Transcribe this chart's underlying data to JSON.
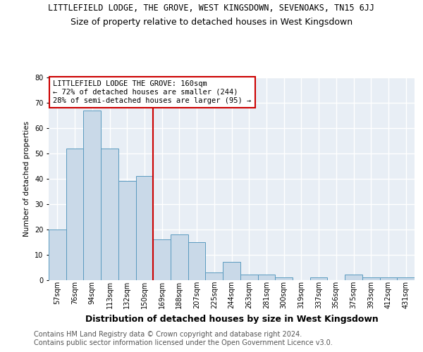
{
  "title": "LITTLEFIELD LODGE, THE GROVE, WEST KINGSDOWN, SEVENOAKS, TN15 6JJ",
  "subtitle": "Size of property relative to detached houses in West Kingsdown",
  "xlabel": "Distribution of detached houses by size in West Kingsdown",
  "ylabel": "Number of detached properties",
  "categories": [
    "57sqm",
    "76sqm",
    "94sqm",
    "113sqm",
    "132sqm",
    "150sqm",
    "169sqm",
    "188sqm",
    "207sqm",
    "225sqm",
    "244sqm",
    "263sqm",
    "281sqm",
    "300sqm",
    "319sqm",
    "337sqm",
    "356sqm",
    "375sqm",
    "393sqm",
    "412sqm",
    "431sqm"
  ],
  "values": [
    20,
    52,
    67,
    52,
    39,
    41,
    16,
    18,
    15,
    3,
    7,
    2,
    2,
    1,
    0,
    1,
    0,
    2,
    1,
    1,
    1
  ],
  "bar_color": "#c9d9e8",
  "bar_edge_color": "#5a9abf",
  "background_color": "#e8eef5",
  "grid_color": "#ffffff",
  "vline_x": 5.5,
  "vline_color": "#cc0000",
  "annotation_line1": "LITTLEFIELD LODGE THE GROVE: 160sqm",
  "annotation_line2": "← 72% of detached houses are smaller (244)",
  "annotation_line3": "28% of semi-detached houses are larger (95) →",
  "annotation_box_color": "#ffffff",
  "annotation_border_color": "#cc0000",
  "footer_line1": "Contains HM Land Registry data © Crown copyright and database right 2024.",
  "footer_line2": "Contains public sector information licensed under the Open Government Licence v3.0.",
  "ylim": [
    0,
    80
  ],
  "title_fontsize": 8.5,
  "subtitle_fontsize": 9.0,
  "annotation_fontsize": 7.5,
  "footer_fontsize": 7.0,
  "tick_fontsize": 7,
  "ylabel_fontsize": 7.5,
  "xlabel_fontsize": 9.0
}
